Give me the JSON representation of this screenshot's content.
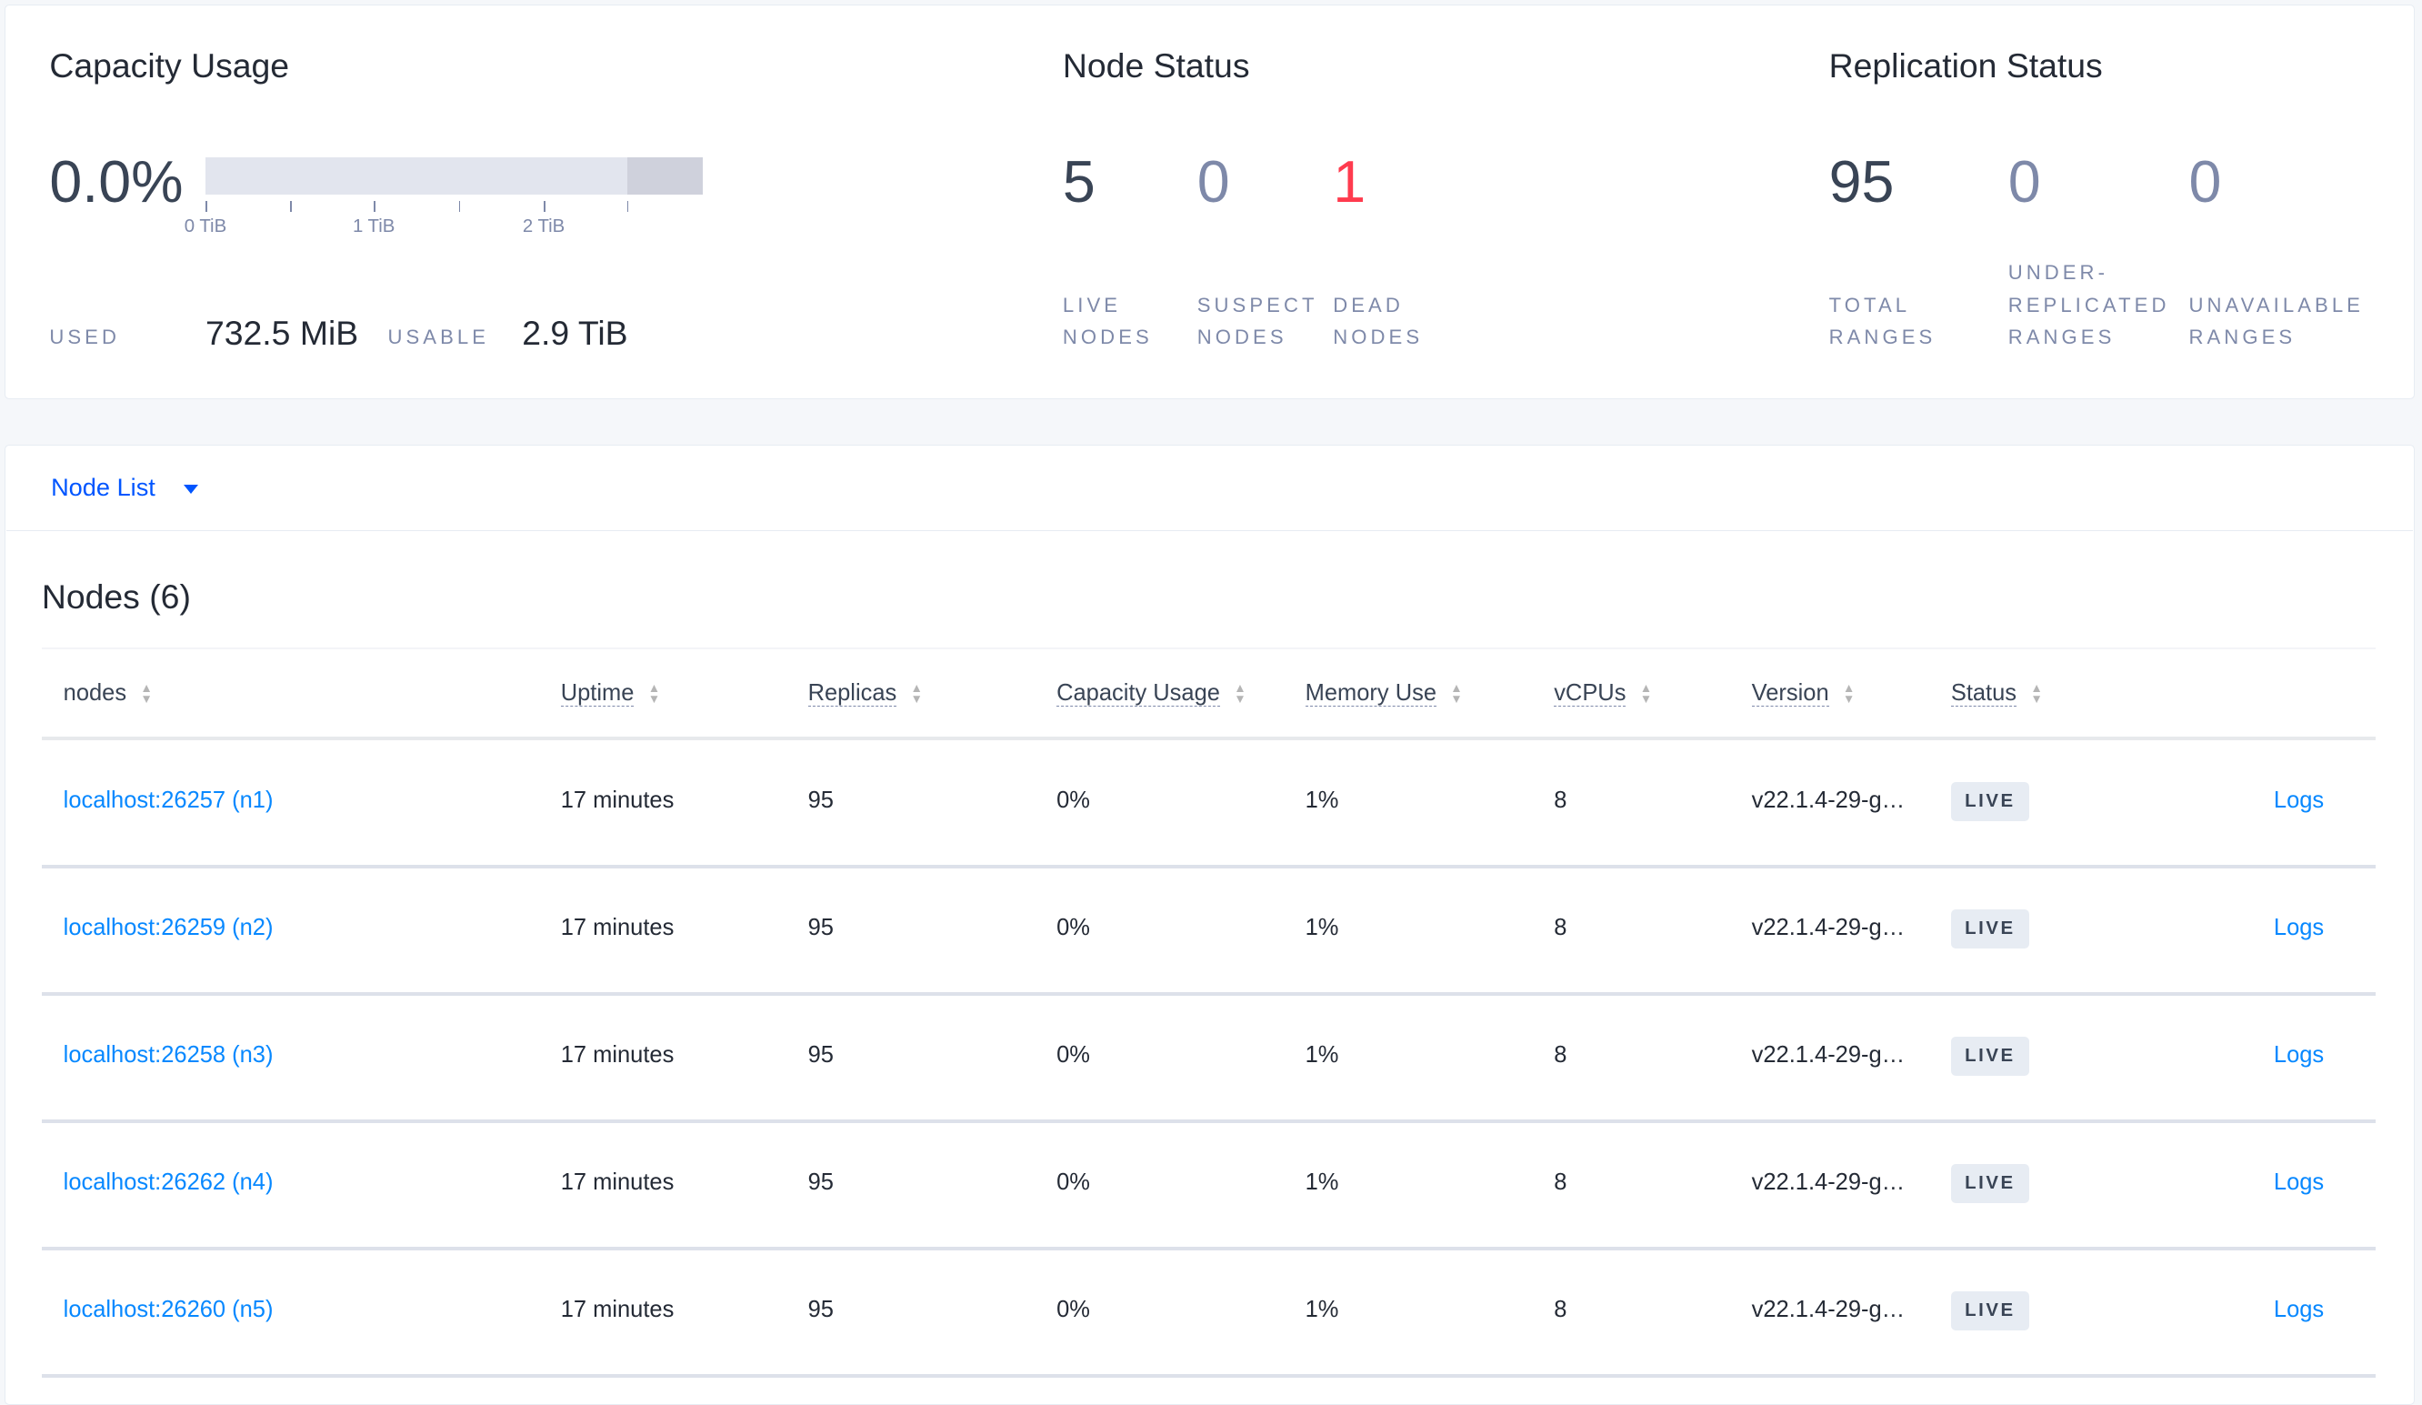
{
  "capacity": {
    "title": "Capacity Usage",
    "percent": "0.0%",
    "used_fraction": 0.0,
    "ticks": [
      "0 TiB",
      "1 TiB",
      "2 TiB"
    ],
    "used_label": "USED",
    "used_value": "732.5 MiB",
    "usable_label": "USABLE",
    "usable_value": "2.9 TiB"
  },
  "node_status": {
    "title": "Node Status",
    "live": "5",
    "live_l1": "LIVE",
    "live_l2": "NODES",
    "suspect": "0",
    "suspect_l1": "SUSPECT",
    "suspect_l2": "NODES",
    "dead": "1",
    "dead_l1": "DEAD",
    "dead_l2": "NODES"
  },
  "replication": {
    "title": "Replication Status",
    "total": "95",
    "total_l1": "TOTAL",
    "total_l2": "RANGES",
    "under": "0",
    "under_l1": "UNDER-",
    "under_l2": "REPLICATED",
    "under_l3": "RANGES",
    "unavail": "0",
    "unavail_l1": "UNAVAILABLE",
    "unavail_l2": "RANGES"
  },
  "colors": {
    "accent": "#0055ff",
    "link": "#0788ff",
    "dead": "#ff3b4e"
  },
  "node_list": {
    "dropdown": "Node List",
    "heading": "Nodes (6)",
    "columns": [
      "nodes",
      "Uptime",
      "Replicas",
      "Capacity Usage",
      "Memory Use",
      "vCPUs",
      "Version",
      "Status"
    ],
    "rows": [
      {
        "node": "localhost:26257 (n1)",
        "uptime": "17 minutes",
        "replicas": "95",
        "capacity": "0%",
        "memory": "1%",
        "vcpus": "8",
        "version": "v22.1.4-29-g…",
        "status": "LIVE",
        "logs": "Logs"
      },
      {
        "node": "localhost:26259 (n2)",
        "uptime": "17 minutes",
        "replicas": "95",
        "capacity": "0%",
        "memory": "1%",
        "vcpus": "8",
        "version": "v22.1.4-29-g…",
        "status": "LIVE",
        "logs": "Logs"
      },
      {
        "node": "localhost:26258 (n3)",
        "uptime": "17 minutes",
        "replicas": "95",
        "capacity": "0%",
        "memory": "1%",
        "vcpus": "8",
        "version": "v22.1.4-29-g…",
        "status": "LIVE",
        "logs": "Logs"
      },
      {
        "node": "localhost:26262 (n4)",
        "uptime": "17 minutes",
        "replicas": "95",
        "capacity": "0%",
        "memory": "1%",
        "vcpus": "8",
        "version": "v22.1.4-29-g…",
        "status": "LIVE",
        "logs": "Logs"
      },
      {
        "node": "localhost:26260 (n5)",
        "uptime": "17 minutes",
        "replicas": "95",
        "capacity": "0%",
        "memory": "1%",
        "vcpus": "8",
        "version": "v22.1.4-29-g…",
        "status": "LIVE",
        "logs": "Logs"
      }
    ]
  }
}
